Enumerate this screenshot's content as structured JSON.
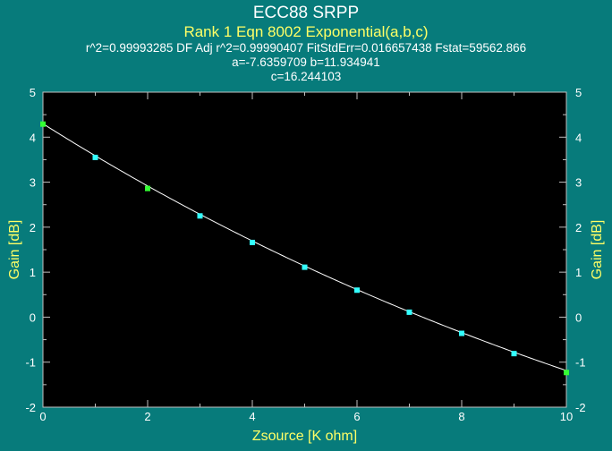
{
  "chart_data": {
    "type": "scatter",
    "title": "ECC88 SRPP",
    "subtitle": "Rank 1  Eqn 8002  Exponential(a,b,c)",
    "stats_line1": "r^2=0.99993285  DF Adj r^2=0.99990407  FitStdErr=0.016657438  Fstat=59562.866",
    "stats_line2": "a=-7.6359709 b=11.934941",
    "stats_line3": "c=16.244103",
    "xlabel": "Zsource [K ohm]",
    "ylabel": "Gain [dB]",
    "ylabel_right": "Gain [dB]",
    "xlim": [
      0,
      10
    ],
    "ylim": [
      -2,
      5
    ],
    "x_ticks": [
      "0",
      "2",
      "4",
      "6",
      "8",
      "10"
    ],
    "y_ticks": [
      "5",
      "4",
      "3",
      "2",
      "1",
      "0",
      "-1",
      "-2"
    ],
    "x_tick_values": [
      0,
      2,
      4,
      6,
      8,
      10
    ],
    "y_tick_values": [
      5,
      4,
      3,
      2,
      1,
      0,
      -1,
      -2
    ],
    "fit": {
      "a": -7.6359709,
      "b": 11.934941,
      "c": 16.244103
    },
    "points": [
      {
        "x": 0,
        "y": 4.29,
        "color": "#33ff33"
      },
      {
        "x": 1,
        "y": 3.55,
        "color": "#33ffff"
      },
      {
        "x": 2,
        "y": 2.86,
        "color": "#33ff33"
      },
      {
        "x": 3,
        "y": 2.25,
        "color": "#33ffff"
      },
      {
        "x": 4,
        "y": 1.66,
        "color": "#33ffff"
      },
      {
        "x": 5,
        "y": 1.11,
        "color": "#33ffff"
      },
      {
        "x": 6,
        "y": 0.6,
        "color": "#33ffff"
      },
      {
        "x": 7,
        "y": 0.11,
        "color": "#33ffff"
      },
      {
        "x": 8,
        "y": -0.36,
        "color": "#33ffff"
      },
      {
        "x": 9,
        "y": -0.81,
        "color": "#33ffff"
      },
      {
        "x": 10,
        "y": -1.23,
        "color": "#33ff33"
      }
    ],
    "grid": false,
    "colors": {
      "background": "#077b7b",
      "plot_background": "#000000",
      "curve": "#ffffff",
      "title": "#ffffff",
      "subtitle": "#ffff66",
      "axis_label": "#ffff66"
    }
  }
}
